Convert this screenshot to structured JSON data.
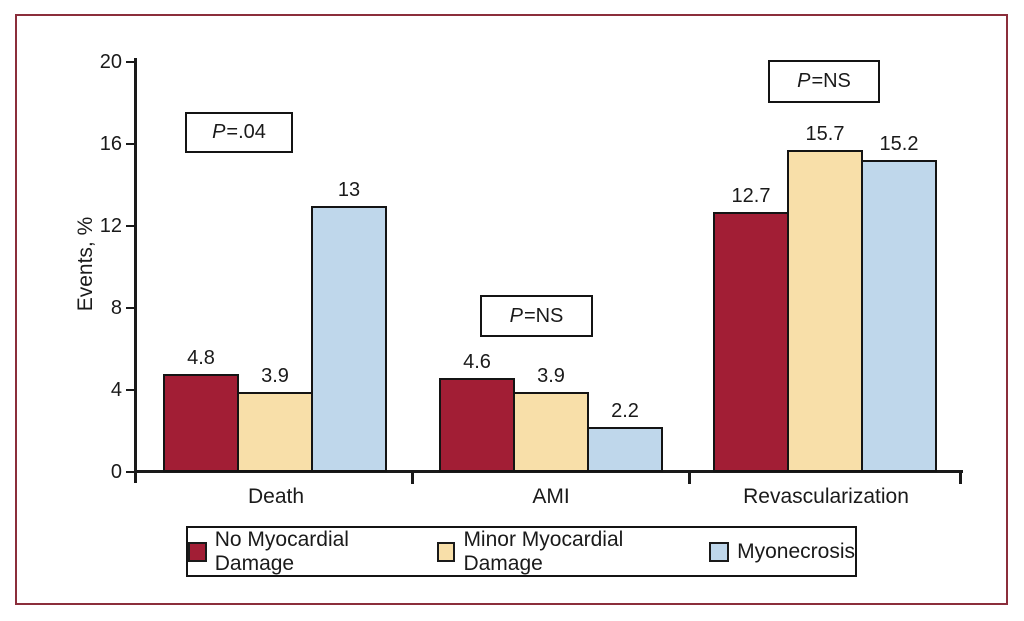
{
  "figure": {
    "border_color": "#8B2E3B"
  },
  "chart_data": {
    "type": "bar",
    "title": "",
    "xlabel": "",
    "ylabel": "Events, %",
    "ylim": [
      0,
      20
    ],
    "yticks": [
      0,
      4,
      8,
      12,
      16,
      20
    ],
    "grid": false,
    "legend_position": "bottom",
    "categories": [
      "Death",
      "AMI",
      "Revascularization"
    ],
    "series": [
      {
        "name": "No Myocardial Damage",
        "color": "#A21E35",
        "values": [
          4.8,
          4.6,
          12.7
        ]
      },
      {
        "name": "Minor Myocardial Damage",
        "color": "#F8DFA9",
        "values": [
          3.9,
          3.9,
          15.7
        ]
      },
      {
        "name": "Myonecrosis",
        "color": "#BFD7EB",
        "values": [
          13,
          2.2,
          15.2
        ]
      }
    ],
    "bar_value_labels": [
      [
        "4.8",
        "3.9",
        "13"
      ],
      [
        "4.6",
        "3.9",
        "2.2"
      ],
      [
        "12.7",
        "15.7",
        "15.2"
      ]
    ],
    "annotations": [
      {
        "category": "Death",
        "text": "P=.04"
      },
      {
        "category": "AMI",
        "text": "P=NS"
      },
      {
        "category": "Revascularization",
        "text": "P=NS"
      }
    ]
  }
}
